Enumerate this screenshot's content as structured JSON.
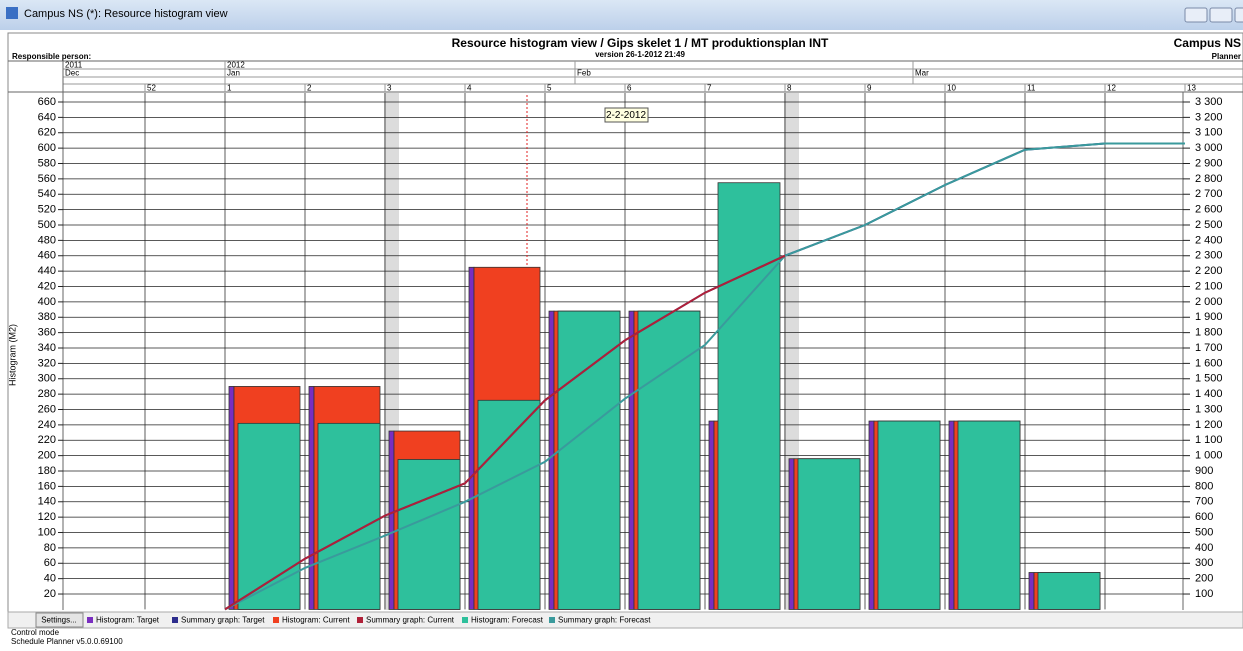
{
  "window": {
    "title": "Campus NS (*): Resource histogram view"
  },
  "header": {
    "title": "Resource histogram view / Gips skelet 1 / MT produktionsplan INT",
    "version": "version 26-1-2012 21:49",
    "campus": "Campus NS",
    "responsible": "Responsible person:",
    "planner": "Planner"
  },
  "timeline": {
    "years": [
      "2011",
      "2012"
    ],
    "months": [
      "Dec",
      "Jan",
      "Feb",
      "Mar"
    ]
  },
  "chart_data": {
    "type": "bar",
    "y_label": "Histogram (M2)",
    "tooltip": "2-2-2012",
    "categories": [
      "52",
      "1",
      "2",
      "3",
      "4",
      "5",
      "6",
      "7",
      "8",
      "9",
      "10",
      "11",
      "12",
      "13"
    ],
    "series": [
      {
        "name": "Histogram: Target",
        "type": "bar",
        "color": "#7a2ec0",
        "values": [
          null,
          290,
          290,
          232,
          445,
          388,
          388,
          245,
          196,
          245,
          245,
          48,
          null,
          null
        ]
      },
      {
        "name": "Summary graph: Target",
        "type": "line",
        "axis": "y2",
        "color": "#2c2c8c",
        "values": [
          null,
          0,
          330,
          610,
          820,
          1360,
          1750,
          2060,
          2300,
          2500,
          2760,
          2990,
          3030,
          3030
        ]
      },
      {
        "name": "Histogram: Current",
        "type": "bar",
        "color": "#f04020",
        "values": [
          null,
          290,
          290,
          232,
          445,
          388,
          388,
          245,
          196,
          245,
          245,
          48,
          null,
          null
        ]
      },
      {
        "name": "Summary graph: Current",
        "type": "line",
        "axis": "y2",
        "color": "#b02038",
        "values": [
          null,
          0,
          330,
          610,
          820,
          1360,
          1750,
          2060,
          2300,
          null,
          null,
          null,
          null,
          null
        ]
      },
      {
        "name": "Histogram: Forecast",
        "type": "bar",
        "color": "#2ec09c",
        "values": [
          null,
          242,
          242,
          195,
          272,
          388,
          388,
          555,
          196,
          245,
          245,
          48,
          null,
          null
        ]
      },
      {
        "name": "Summary graph: Forecast",
        "type": "line",
        "axis": "y2",
        "color": "#3a9a9c",
        "values": [
          null,
          0,
          270,
          480,
          700,
          960,
          1370,
          1720,
          2300,
          2500,
          2760,
          2990,
          3030,
          3030
        ]
      }
    ],
    "ylim": [
      0,
      670
    ],
    "yticks": [
      20,
      40,
      60,
      80,
      100,
      120,
      140,
      160,
      180,
      200,
      220,
      240,
      260,
      280,
      300,
      320,
      340,
      360,
      380,
      400,
      420,
      440,
      460,
      480,
      500,
      520,
      540,
      560,
      580,
      600,
      620,
      640,
      660
    ],
    "y2lim": [
      0,
      3350
    ],
    "y2ticks": [
      100,
      200,
      300,
      400,
      500,
      600,
      700,
      800,
      900,
      {
        "value": 1000,
        "label": "1 000"
      },
      {
        "value": 1100,
        "label": "1 100"
      },
      {
        "value": 1200,
        "label": "1 200"
      },
      {
        "value": 1300,
        "label": "1 300"
      },
      {
        "value": 1400,
        "label": "1 400"
      },
      {
        "value": 1500,
        "label": "1 500"
      },
      {
        "value": 1600,
        "label": "1 600"
      },
      {
        "value": 1700,
        "label": "1 700"
      },
      {
        "value": 1800,
        "label": "1 800"
      },
      {
        "value": 1900,
        "label": "1 900"
      },
      {
        "value": 2000,
        "label": "2 000"
      },
      {
        "value": 2100,
        "label": "2 100"
      },
      {
        "value": 2200,
        "label": "2 200"
      },
      {
        "value": 2300,
        "label": "2 300"
      },
      {
        "value": 2400,
        "label": "2 400"
      },
      {
        "value": 2500,
        "label": "2 500"
      },
      {
        "value": 2600,
        "label": "2 600"
      },
      {
        "value": 2700,
        "label": "2 700"
      },
      {
        "value": 2800,
        "label": "2 800"
      },
      {
        "value": 2900,
        "label": "2 900"
      },
      {
        "value": 3000,
        "label": "3 000"
      },
      {
        "value": 3100,
        "label": "3 100"
      },
      {
        "value": 3200,
        "label": "3 200"
      },
      {
        "value": 3300,
        "label": "3 300"
      }
    ],
    "grid": true
  },
  "footer": {
    "settings": "Settings...",
    "mode": "Control mode",
    "version": "Schedule Planner v5.0.0.69100"
  }
}
